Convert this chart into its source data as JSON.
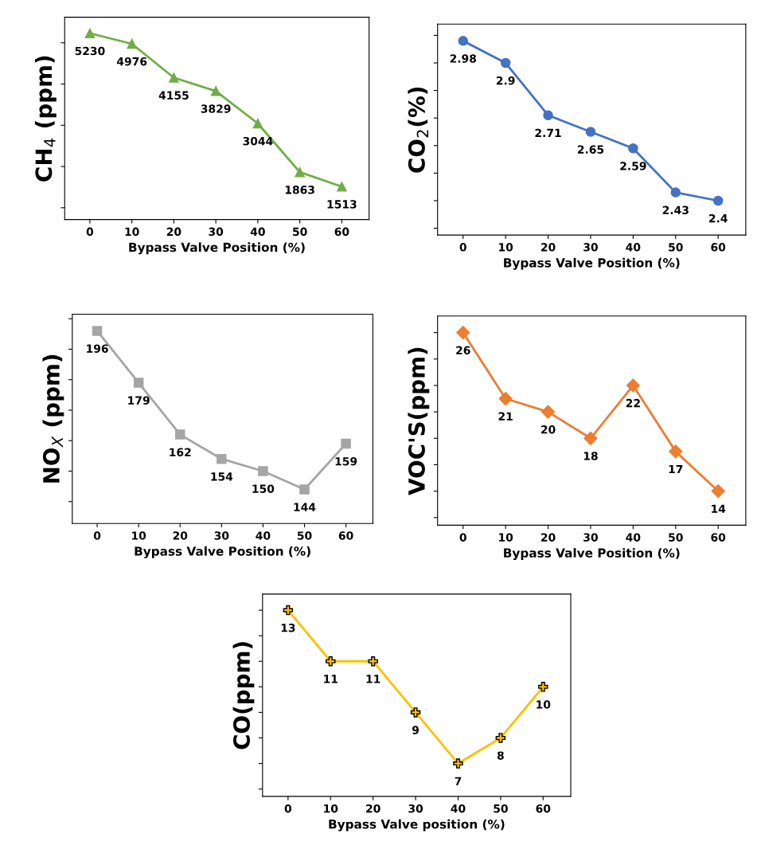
{
  "chart_data": [
    {
      "type": "line",
      "xlabel": "Bypass Valve Position (%)",
      "ylabel": "CH$_{4}$ (ppm)",
      "categories": [
        "0",
        "10",
        "20",
        "30",
        "40",
        "50",
        "60"
      ],
      "series": [
        {
          "color": "#70ad47",
          "values": [
            5230,
            4976,
            4155,
            3829,
            3044,
            1863,
            1513
          ]
        }
      ],
      "marker": "triangle",
      "data_labels": true,
      "tick_labels": "x"
    },
    {
      "type": "line",
      "xlabel": "Bypass Valve Position (%)",
      "ylabel": "CO$_{2}$(%)",
      "categories": [
        "0",
        "10",
        "20",
        "30",
        "40",
        "50",
        "60"
      ],
      "series": [
        {
          "color": "#4472c4",
          "values": [
            2.98,
            2.9,
            2.71,
            2.65,
            2.59,
            2.43,
            2.4
          ]
        }
      ],
      "marker": "circle",
      "data_labels": true,
      "tick_labels": "x"
    },
    {
      "type": "line",
      "xlabel": "Bypass Valve Position (%)",
      "ylabel": "NO$_{X}$ (ppm)",
      "categories": [
        "0",
        "10",
        "20",
        "30",
        "40",
        "50",
        "60"
      ],
      "series": [
        {
          "color": "#a5a5a5",
          "values": [
            196,
            179,
            162,
            154,
            150,
            144,
            159
          ]
        }
      ],
      "marker": "square",
      "data_labels": true,
      "tick_labels": "x"
    },
    {
      "type": "line",
      "xlabel": "Bypass Valve Position (%)",
      "ylabel": "VOC'S(ppm)",
      "categories": [
        "0",
        "10",
        "20",
        "30",
        "40",
        "50",
        "60"
      ],
      "series": [
        {
          "color": "#ed7d31",
          "values": [
            26,
            21,
            20,
            18,
            22,
            17,
            14
          ]
        }
      ],
      "marker": "diamond",
      "data_labels": true,
      "tick_labels": "x"
    },
    {
      "type": "line",
      "xlabel": "Bypass Valve position (%)",
      "ylabel": "CO(ppm)",
      "categories": [
        "0",
        "10",
        "20",
        "30",
        "40",
        "50",
        "60"
      ],
      "series": [
        {
          "color": "#ffc000",
          "values": [
            13,
            11,
            11,
            9,
            7,
            8,
            10
          ]
        }
      ],
      "marker": "cross",
      "data_labels": true,
      "tick_labels": "x"
    }
  ]
}
